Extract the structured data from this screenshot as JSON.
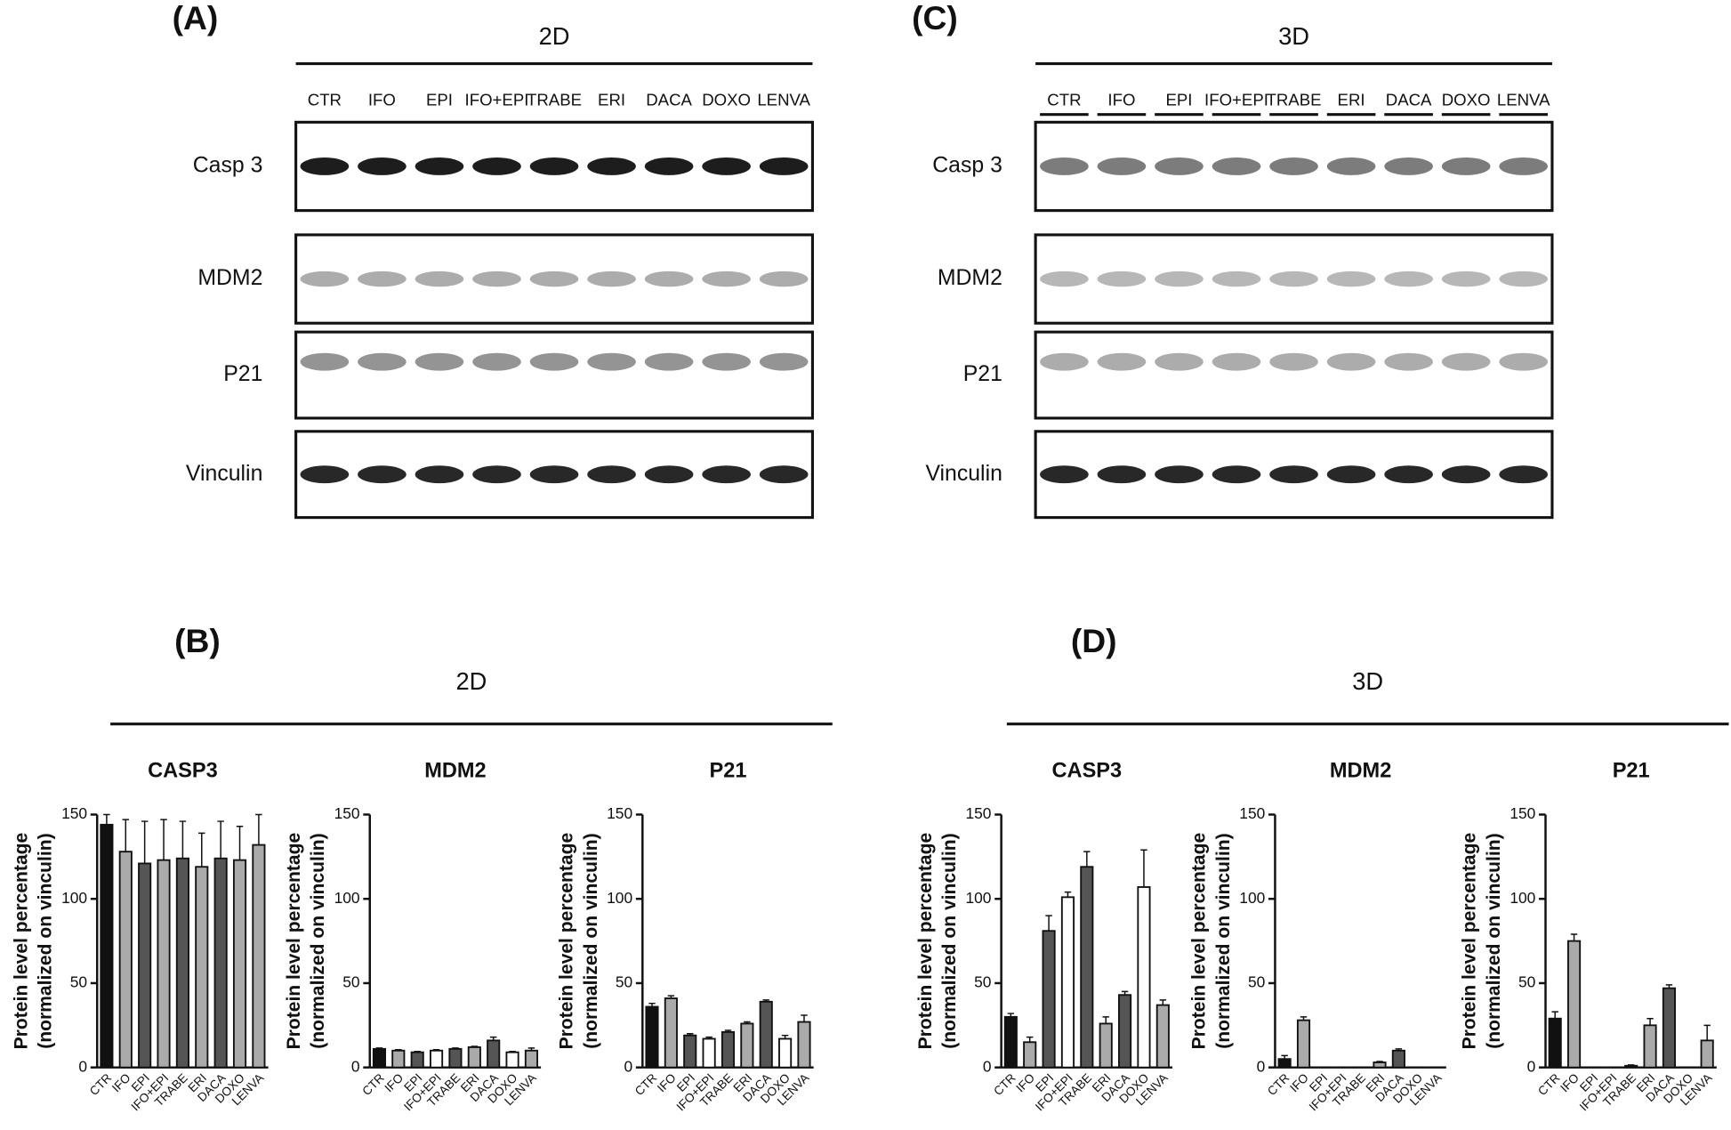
{
  "blots": [
    {
      "label": "(A)",
      "condition": "2D",
      "lanes": [
        "CTR",
        "IFO",
        "EPI",
        "IFO+EPI",
        "TRABE",
        "ERI",
        "DACA",
        "DOXO",
        "LENVA"
      ],
      "proteins": [
        "Casp 3",
        "MDM2",
        "P21",
        "Vinculin"
      ]
    },
    {
      "label": "(C)",
      "condition": "3D",
      "lanes": [
        "CTR",
        "IFO",
        "EPI",
        "IFO+EPI",
        "TRABE",
        "ERI",
        "DACA",
        "DOXO",
        "LENVA"
      ],
      "proteins": [
        "Casp 3",
        "MDM2",
        "P21",
        "Vinculin"
      ]
    }
  ],
  "groups": [
    {
      "label": "(B)",
      "condition": "2D"
    },
    {
      "label": "(D)",
      "condition": "3D"
    }
  ],
  "chart_data": [
    {
      "type": "bar",
      "title": "CASP3",
      "ylabel": [
        "Protein level percentage",
        "(normalized on vinculin)"
      ],
      "categories": [
        "CTR",
        "IFO",
        "EPI",
        "IFO+EPI",
        "TRABE",
        "ERI",
        "DACA",
        "DOXO",
        "LENVA"
      ],
      "values": [
        144,
        128,
        121,
        123,
        124,
        119,
        124,
        123,
        132
      ],
      "errors": [
        6,
        19,
        25,
        24,
        22,
        20,
        22,
        20,
        25
      ],
      "colors": [
        "#111111",
        "#aaaaaa",
        "#555555",
        "#aaaaaa",
        "#555555",
        "#aaaaaa",
        "#555555",
        "#aaaaaa",
        "#aaaaaa"
      ],
      "ylim": [
        0,
        150
      ],
      "yticks": [
        0,
        50,
        100,
        150
      ]
    },
    {
      "type": "bar",
      "title": "MDM2",
      "ylabel": [
        "Protein level percentage",
        "(normalized on vinculin)"
      ],
      "categories": [
        "CTR",
        "IFO",
        "EPI",
        "IFO+EPI",
        "TRABE",
        "ERI",
        "DACA",
        "DOXO",
        "LENVA"
      ],
      "values": [
        11,
        10,
        9,
        10,
        11,
        12,
        16,
        9,
        10
      ],
      "errors": [
        0.5,
        0.5,
        0.5,
        0.5,
        0.5,
        0.5,
        2,
        0.5,
        1.5
      ],
      "colors": [
        "#111111",
        "#aaaaaa",
        "#555555",
        "#ffffff",
        "#555555",
        "#aaaaaa",
        "#555555",
        "#ffffff",
        "#aaaaaa"
      ],
      "ylim": [
        0,
        150
      ],
      "yticks": [
        0,
        50,
        100,
        150
      ]
    },
    {
      "type": "bar",
      "title": "P21",
      "ylabel": [
        "Protein level percentage",
        "(normalized on vinculin)"
      ],
      "categories": [
        "CTR",
        "IFO",
        "EPI",
        "IFO+EPI",
        "TRABE",
        "ERI",
        "DACA",
        "DOXO",
        "LENVA"
      ],
      "values": [
        36,
        41,
        19,
        17,
        21,
        26,
        39,
        17,
        27
      ],
      "errors": [
        2,
        1.5,
        1,
        1,
        1,
        1,
        1,
        2,
        4
      ],
      "colors": [
        "#111111",
        "#aaaaaa",
        "#555555",
        "#ffffff",
        "#555555",
        "#aaaaaa",
        "#555555",
        "#ffffff",
        "#aaaaaa"
      ],
      "ylim": [
        0,
        150
      ],
      "yticks": [
        0,
        50,
        100,
        150
      ]
    },
    {
      "type": "bar",
      "title": "CASP3",
      "ylabel": [
        "Protein level percentage",
        "(normalized on vinculin)"
      ],
      "categories": [
        "CTR",
        "IFO",
        "EPI",
        "IFO+EPI",
        "TRABE",
        "ERI",
        "DACA",
        "DOXO",
        "LENVA"
      ],
      "values": [
        30,
        15,
        81,
        101,
        119,
        26,
        43,
        107,
        37
      ],
      "errors": [
        2,
        3,
        9,
        3,
        9,
        4,
        2,
        22,
        3
      ],
      "colors": [
        "#111111",
        "#aaaaaa",
        "#555555",
        "#ffffff",
        "#555555",
        "#aaaaaa",
        "#555555",
        "#ffffff",
        "#aaaaaa"
      ],
      "ylim": [
        0,
        150
      ],
      "yticks": [
        0,
        50,
        100,
        150
      ]
    },
    {
      "type": "bar",
      "title": "MDM2",
      "ylabel": [
        "Protein level percentage",
        "(normalized on vinculin)"
      ],
      "categories": [
        "CTR",
        "IFO",
        "EPI",
        "IFO+EPI",
        "TRABE",
        "ERI",
        "DACA",
        "DOXO",
        "LENVA"
      ],
      "values": [
        5,
        28,
        0,
        0,
        0,
        3,
        10,
        0,
        0
      ],
      "errors": [
        2,
        2,
        0,
        0,
        0,
        0.5,
        1,
        0,
        0
      ],
      "colors": [
        "#111111",
        "#aaaaaa",
        "#555555",
        "#ffffff",
        "#555555",
        "#aaaaaa",
        "#555555",
        "#ffffff",
        "#aaaaaa"
      ],
      "ylim": [
        0,
        150
      ],
      "yticks": [
        0,
        50,
        100,
        150
      ]
    },
    {
      "type": "bar",
      "title": "P21",
      "ylabel": [
        "Protein level percentage",
        "(normalized on vinculin)"
      ],
      "categories": [
        "CTR",
        "IFO",
        "EPI",
        "IFO+EPI",
        "TRABE",
        "ERI",
        "DACA",
        "DOXO",
        "LENVA"
      ],
      "values": [
        29,
        75,
        0,
        0,
        1,
        25,
        47,
        0,
        16
      ],
      "errors": [
        4,
        4,
        0,
        0,
        0.5,
        4,
        2,
        0,
        9
      ],
      "colors": [
        "#111111",
        "#aaaaaa",
        "#555555",
        "#ffffff",
        "#555555",
        "#aaaaaa",
        "#555555",
        "#ffffff",
        "#aaaaaa"
      ],
      "ylim": [
        0,
        150
      ],
      "yticks": [
        0,
        50,
        100,
        150
      ]
    }
  ]
}
